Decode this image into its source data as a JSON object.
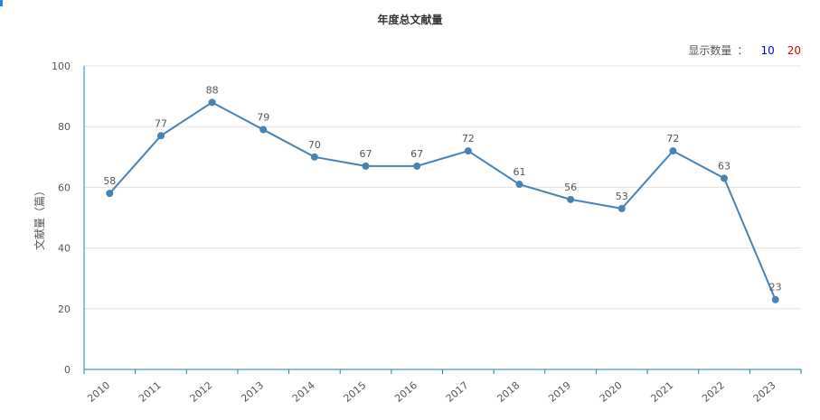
{
  "page": {
    "title": "年度总文献量"
  },
  "controls": {
    "display_count_label": "显示数量",
    "colon": "：",
    "options": [
      {
        "label": "10",
        "color": "#0000ee"
      },
      {
        "label": "20",
        "color": "#e00000"
      }
    ]
  },
  "chart_data": {
    "type": "line",
    "title": "年度总文献量",
    "xlabel": "",
    "ylabel": "文献量（篇）",
    "x": [
      "2010",
      "2011",
      "2012",
      "2013",
      "2014",
      "2015",
      "2016",
      "2017",
      "2018",
      "2019",
      "2020",
      "2021",
      "2022",
      "2023"
    ],
    "series": [
      {
        "values": [
          58,
          77,
          88,
          79,
          70,
          67,
          67,
          72,
          61,
          56,
          53,
          72,
          63,
          23
        ]
      }
    ],
    "ylim": [
      0,
      100
    ],
    "yticks": [
      0,
      20,
      40,
      60,
      80,
      100
    ],
    "grid": true,
    "line_color": "#4682b4",
    "axis_color": "#1f7fb2",
    "show_data_labels": true
  }
}
